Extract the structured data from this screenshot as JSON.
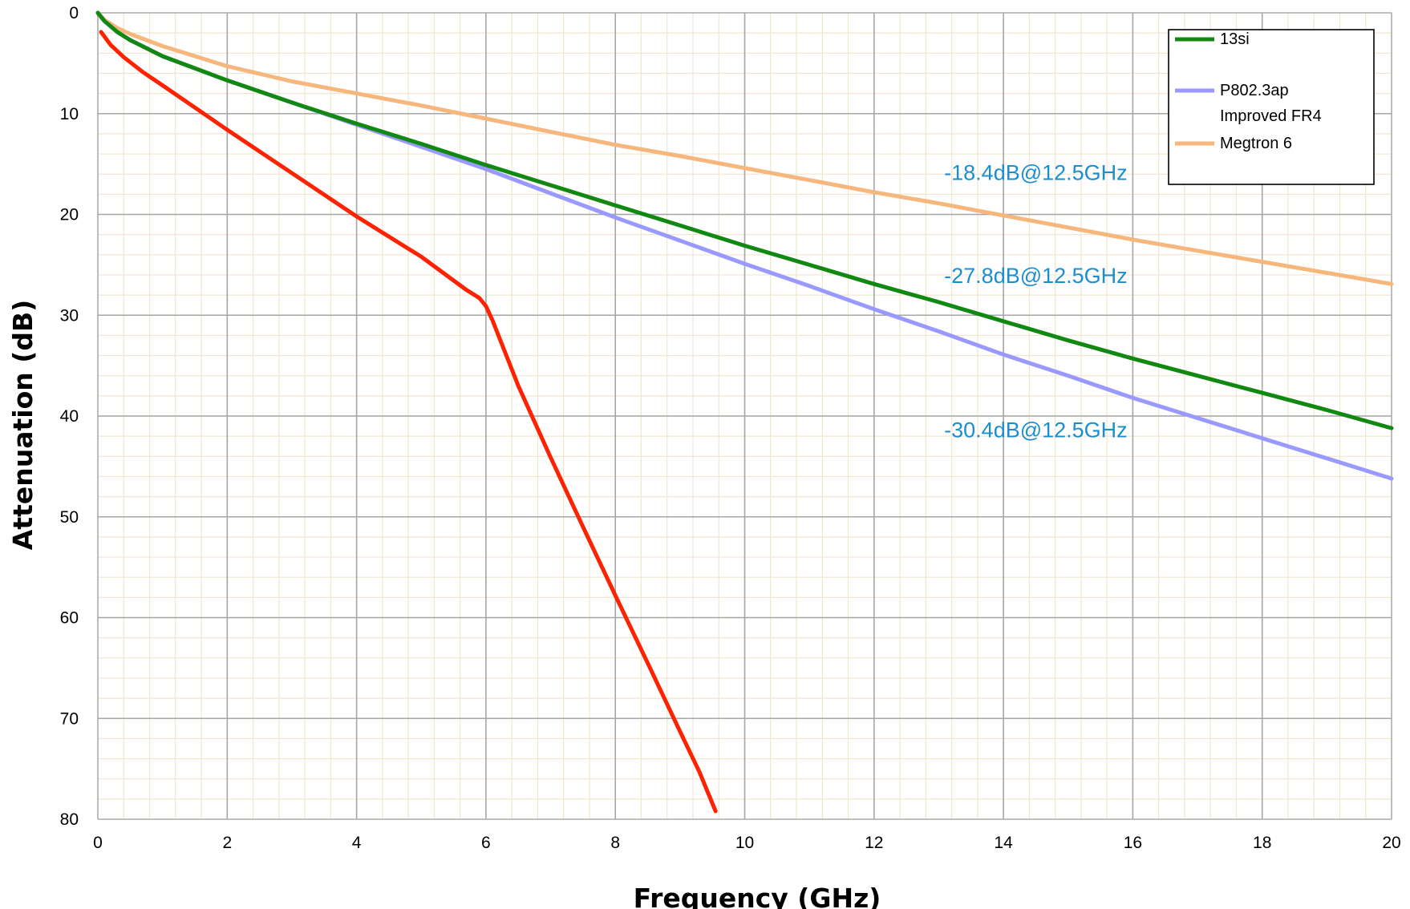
{
  "chart_data": {
    "type": "line",
    "xlabel": "Frequency (GHz)",
    "ylabel": "Attenuation (dB)",
    "xlim": [
      0,
      20
    ],
    "ylim": [
      0,
      80
    ],
    "y_inverted": true,
    "grid": true,
    "x_ticks": [
      "0",
      "2",
      "4",
      "6",
      "8",
      "10",
      "12",
      "14",
      "16",
      "18",
      "20"
    ],
    "y_ticks": [
      "0",
      "10",
      "20",
      "30",
      "40",
      "50",
      "60",
      "70",
      "80"
    ],
    "legend": {
      "position": "top-right",
      "entries": [
        {
          "lines": [
            "13si"
          ],
          "color": "#118811"
        },
        {
          "lines": [
            "P802.3ap",
            "Improved FR4"
          ],
          "color": "#9999ff"
        },
        {
          "lines": [
            "Megtron 6"
          ],
          "color": "#f5b77c"
        }
      ]
    },
    "series": [
      {
        "color": "#f5b77c",
        "x": [
          0,
          0.1,
          0.3,
          0.5,
          1,
          2,
          3,
          4,
          5,
          6,
          7,
          8,
          9,
          10,
          11,
          12,
          13,
          14,
          15,
          16,
          17,
          18,
          19,
          20
        ],
        "y": [
          0,
          0.7,
          1.5,
          2.1,
          3.3,
          5.3,
          6.8,
          8.0,
          9.2,
          10.5,
          11.8,
          13.1,
          14.2,
          15.4,
          16.6,
          17.8,
          18.9,
          20.1,
          21.3,
          22.5,
          23.6,
          24.7,
          25.8,
          26.9
        ]
      },
      {
        "color": "#9999ff",
        "x": [
          0,
          0.1,
          0.3,
          0.5,
          1,
          2,
          3,
          4,
          5,
          6,
          7,
          8,
          9,
          10,
          11,
          12,
          13,
          14,
          15,
          16,
          17,
          18,
          19,
          20
        ],
        "y": [
          0,
          0.8,
          1.9,
          2.7,
          4.3,
          6.7,
          8.9,
          11.1,
          13.3,
          15.5,
          17.9,
          20.3,
          22.6,
          24.9,
          27.1,
          29.4,
          31.6,
          33.9,
          36.0,
          38.2,
          40.2,
          42.2,
          44.2,
          46.2
        ]
      },
      {
        "color": "#118811",
        "x": [
          0,
          0.1,
          0.3,
          0.5,
          1,
          2,
          3,
          4,
          5,
          6,
          7,
          8,
          9,
          10,
          11,
          12,
          13,
          14,
          15,
          16,
          17,
          18,
          19,
          20
        ],
        "y": [
          0,
          0.8,
          1.9,
          2.7,
          4.3,
          6.7,
          8.9,
          11.0,
          13.0,
          15.1,
          17.1,
          19.1,
          21.1,
          23.1,
          25.0,
          26.9,
          28.7,
          30.6,
          32.5,
          34.3,
          36.0,
          37.7,
          39.4,
          41.2
        ]
      },
      {
        "color": "#ff2200",
        "x": [
          0.05,
          0.2,
          0.4,
          0.7,
          1,
          1.5,
          2,
          3,
          4,
          5,
          5.7,
          5.9,
          6.0,
          6.1,
          6.5,
          7,
          7.5,
          8,
          8.5,
          9,
          9.3,
          9.55
        ],
        "y": [
          1.9,
          3.2,
          4.4,
          5.9,
          7.2,
          9.4,
          11.6,
          15.9,
          20.2,
          24.2,
          27.5,
          28.3,
          29.1,
          30.5,
          37.0,
          44.1,
          51.0,
          57.8,
          64.5,
          71.3,
          75.3,
          79.2
        ]
      }
    ],
    "annotations": [
      {
        "text": "-18.4dB@12.5GHz",
        "x": 14.5,
        "y": 16.6,
        "color": "#1a8fd0"
      },
      {
        "text": "-27.8dB@12.5GHz",
        "x": 14.5,
        "y": 26.8,
        "color": "#1a8fd0"
      },
      {
        "text": "-30.4dB@12.5GHz",
        "x": 14.5,
        "y": 42.1,
        "color": "#1a8fd0"
      }
    ]
  }
}
